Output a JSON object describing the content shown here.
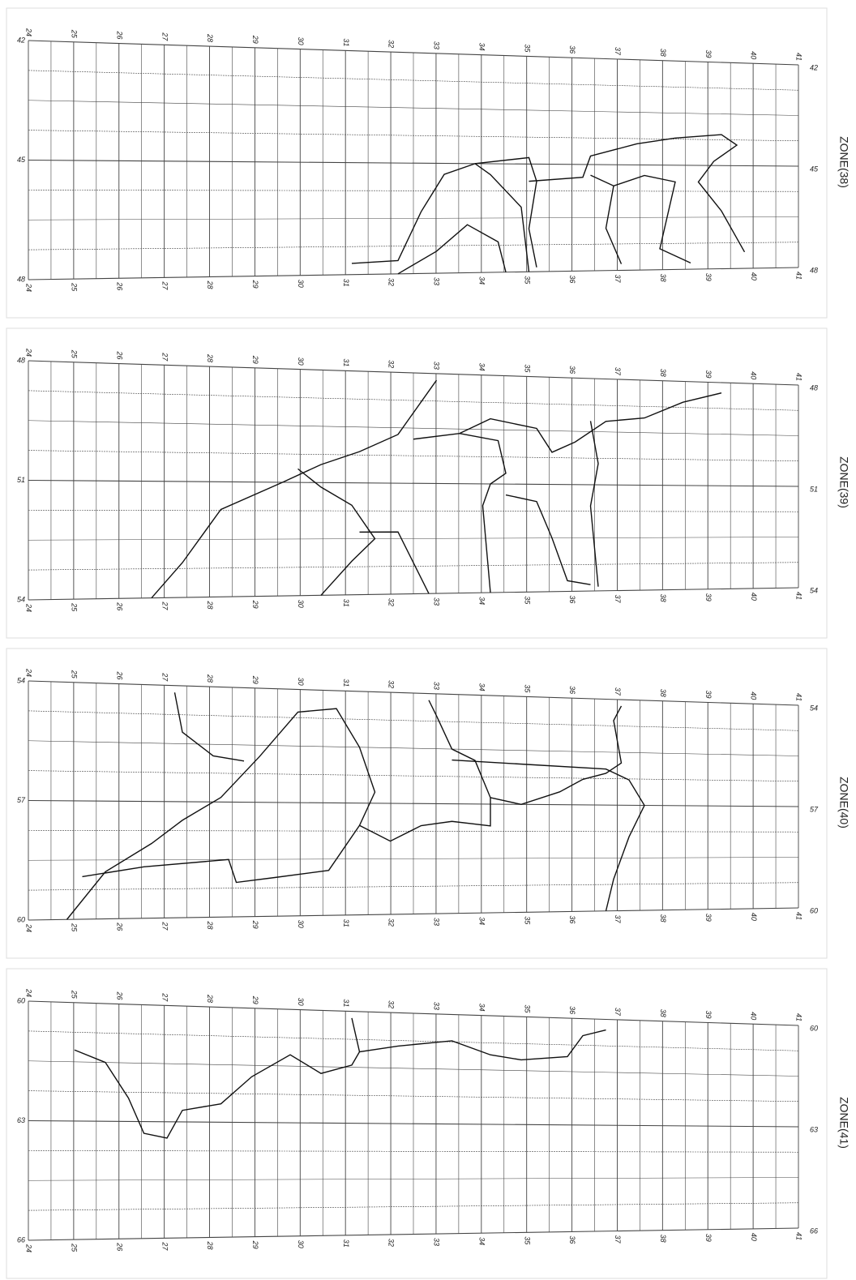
{
  "panels": [
    {
      "zone_label": "ZONE(38)",
      "top_labels": [
        24,
        25,
        26,
        27,
        28,
        29,
        30,
        31,
        32,
        33,
        34,
        35,
        36,
        37,
        38,
        39,
        40,
        41
      ],
      "bottom_labels": [
        24,
        25,
        26,
        27,
        28,
        29,
        30,
        31,
        32,
        33,
        34,
        35,
        36,
        37,
        38,
        39,
        40,
        41
      ],
      "left_labels": [
        42,
        45,
        48
      ],
      "right_labels": [
        42,
        45,
        48
      ]
    },
    {
      "zone_label": "ZONE(39)",
      "top_labels": [
        24,
        25,
        26,
        27,
        28,
        29,
        30,
        31,
        32,
        33,
        34,
        35,
        36,
        37,
        38,
        39,
        40,
        41
      ],
      "bottom_labels": [
        24,
        25,
        26,
        27,
        28,
        29,
        30,
        31,
        32,
        33,
        34,
        35,
        36,
        37,
        38,
        39,
        40,
        41
      ],
      "left_labels": [
        48,
        51,
        54
      ],
      "right_labels": [
        48,
        51,
        54
      ]
    },
    {
      "zone_label": "ZONE(40)",
      "top_labels": [
        24,
        25,
        26,
        27,
        28,
        29,
        30,
        31,
        32,
        33,
        34,
        35,
        36,
        37,
        38,
        39,
        40,
        41
      ],
      "bottom_labels": [
        24,
        25,
        26,
        27,
        28,
        29,
        30,
        31,
        32,
        33,
        34,
        35,
        36,
        37,
        38,
        39,
        40,
        41
      ],
      "left_labels": [
        54,
        57,
        60
      ],
      "right_labels": [
        54,
        57,
        60
      ]
    },
    {
      "zone_label": "ZONE(41)",
      "top_labels": [
        24,
        25,
        26,
        27,
        28,
        29,
        30,
        31,
        32,
        33,
        34,
        35,
        36,
        37,
        38,
        39,
        40,
        41
      ],
      "bottom_labels": [
        24,
        25,
        26,
        27,
        28,
        29,
        30,
        31,
        32,
        33,
        34,
        35,
        36,
        37,
        38,
        39,
        40,
        41
      ],
      "left_labels": [
        60,
        63,
        66
      ],
      "right_labels": [
        60,
        63,
        66
      ]
    }
  ]
}
